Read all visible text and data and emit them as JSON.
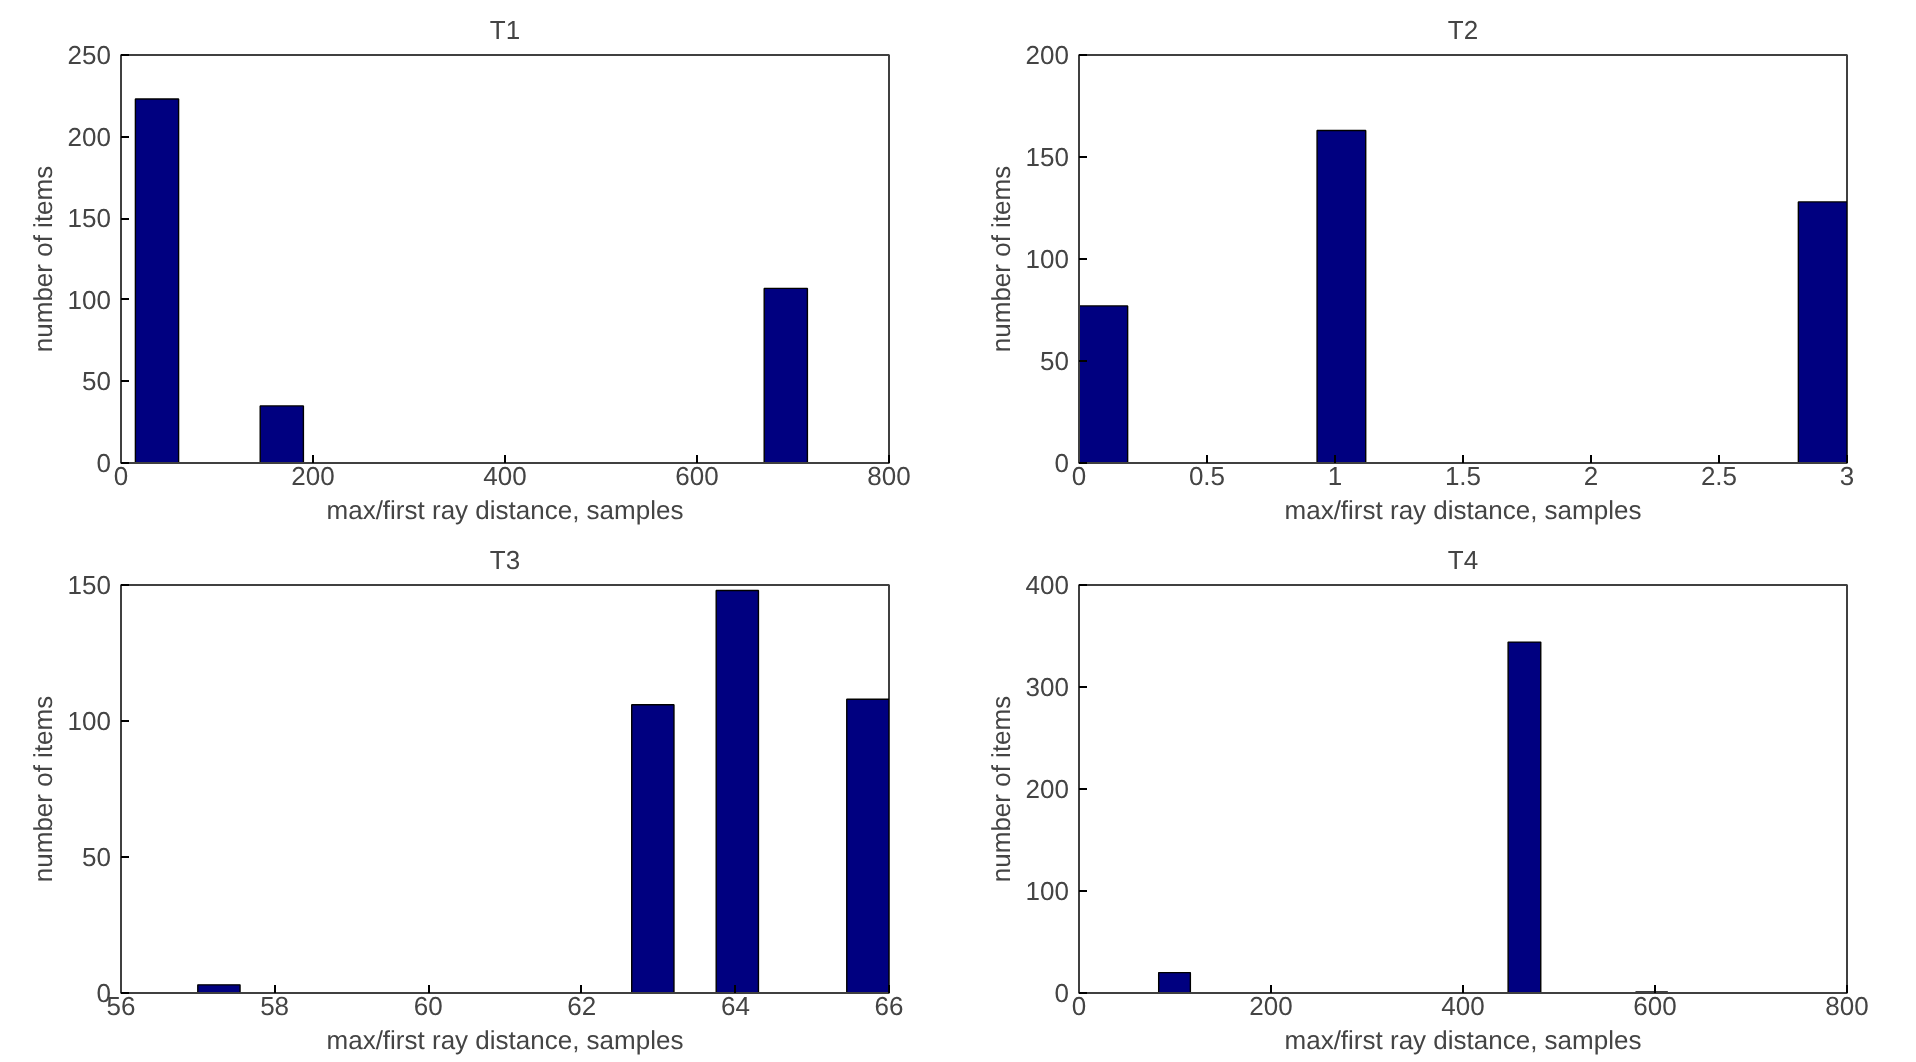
{
  "chart_data": [
    {
      "type": "histogram",
      "title": "T1",
      "xlabel": "max/first ray distance, samples",
      "ylabel": "number of items",
      "color": "#000080",
      "bins": [
        15,
        60,
        145,
        190,
        670,
        715
      ],
      "values": [
        223,
        0,
        35,
        0,
        107
      ],
      "xlim": [
        0,
        800
      ],
      "ylim": [
        0,
        250
      ],
      "xticks": [
        0,
        200,
        400,
        600,
        800
      ],
      "yticks": [
        0,
        50,
        100,
        150,
        200,
        250
      ]
    },
    {
      "type": "histogram",
      "title": "T2",
      "xlabel": "max/first ray distance, samples",
      "ylabel": "number of items",
      "color": "#000080",
      "bins": [
        0,
        0.19,
        0.93,
        1.12,
        2.81,
        3.0
      ],
      "values": [
        77,
        0,
        163,
        0,
        128
      ],
      "xlim": [
        0,
        3
      ],
      "ylim": [
        0,
        200
      ],
      "xticks": [
        0,
        0.5,
        1,
        1.5,
        2,
        2.5,
        3
      ],
      "yticks": [
        0,
        50,
        100,
        150,
        200
      ]
    },
    {
      "type": "histogram",
      "title": "T3",
      "xlabel": "max/first ray distance, samples",
      "ylabel": "number of items",
      "color": "#000080",
      "bins": [
        57,
        57.55,
        62.65,
        63.2,
        63.75,
        64.3,
        65.45,
        66
      ],
      "values": [
        3,
        0,
        106,
        0,
        148,
        0,
        108
      ],
      "xlim": [
        56,
        66
      ],
      "ylim": [
        0,
        150
      ],
      "xticks": [
        56,
        58,
        60,
        62,
        64,
        66
      ],
      "yticks": [
        0,
        50,
        100,
        150
      ]
    },
    {
      "type": "histogram",
      "title": "T4",
      "xlabel": "max/first ray distance, samples",
      "ylabel": "number of items",
      "color": "#000080",
      "bins": [
        83,
        116,
        447,
        481,
        580,
        613
      ],
      "values": [
        20,
        0,
        344,
        0,
        1
      ],
      "xlim": [
        0,
        800
      ],
      "ylim": [
        0,
        400
      ],
      "xticks": [
        0,
        200,
        400,
        600,
        800
      ],
      "yticks": [
        0,
        100,
        200,
        300,
        400
      ]
    }
  ]
}
